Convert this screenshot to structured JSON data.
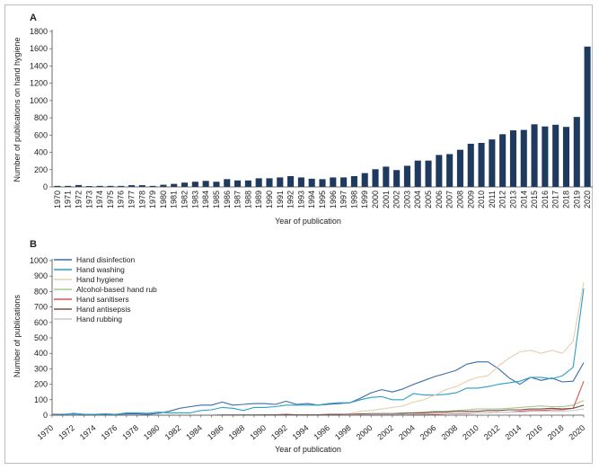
{
  "chart_data": [
    {
      "panel": "A",
      "type": "bar",
      "title": "",
      "xlabel": "Year of publication",
      "ylabel": "Number of publications on hand hygiene",
      "ylim": [
        0,
        1800
      ],
      "yticks": [
        0,
        200,
        400,
        600,
        800,
        1000,
        1200,
        1400,
        1600,
        1800
      ],
      "color": "#1f3a5f",
      "categories": [
        "1970",
        "1971",
        "1972",
        "1973",
        "1974",
        "1975",
        "1976",
        "1977",
        "1978",
        "1979",
        "1980",
        "1981",
        "1982",
        "1983",
        "1984",
        "1985",
        "1986",
        "1987",
        "1988",
        "1989",
        "1990",
        "1991",
        "1992",
        "1993",
        "1994",
        "1995",
        "1996",
        "1997",
        "1998",
        "1999",
        "2000",
        "2001",
        "2002",
        "2003",
        "2004",
        "2005",
        "2006",
        "2007",
        "2008",
        "2009",
        "2010",
        "2011",
        "2012",
        "2013",
        "2014",
        "2015",
        "2016",
        "2017",
        "2018",
        "2019",
        "2020"
      ],
      "values": [
        12,
        12,
        22,
        10,
        12,
        12,
        12,
        20,
        20,
        12,
        25,
        35,
        50,
        60,
        70,
        60,
        90,
        75,
        75,
        100,
        100,
        110,
        125,
        110,
        95,
        90,
        110,
        110,
        125,
        160,
        205,
        235,
        195,
        245,
        305,
        305,
        370,
        380,
        430,
        500,
        510,
        550,
        610,
        655,
        660,
        725,
        700,
        720,
        695,
        810,
        1625
      ]
    },
    {
      "panel": "B",
      "type": "line",
      "title": "",
      "xlabel": "Year of publication",
      "ylabel": "Number of publications",
      "xlim": [
        1970,
        2020
      ],
      "ylim": [
        0,
        1000
      ],
      "yticks": [
        0,
        100,
        200,
        300,
        400,
        500,
        600,
        700,
        800,
        900,
        1000
      ],
      "xticks": [
        "1970",
        "1972",
        "1974",
        "1976",
        "1978",
        "1980",
        "1982",
        "1984",
        "1986",
        "1988",
        "1990",
        "1992",
        "1994",
        "1996",
        "1998",
        "2000",
        "2002",
        "2004",
        "2006",
        "2008",
        "2010",
        "2012",
        "2014",
        "2016",
        "2018",
        "2020"
      ],
      "legend_position": "top-left",
      "x": [
        1970,
        1971,
        1972,
        1973,
        1974,
        1975,
        1976,
        1977,
        1978,
        1979,
        1980,
        1981,
        1982,
        1983,
        1984,
        1985,
        1986,
        1987,
        1988,
        1989,
        1990,
        1991,
        1992,
        1993,
        1994,
        1995,
        1996,
        1997,
        1998,
        1999,
        2000,
        2001,
        2002,
        2003,
        2004,
        2005,
        2006,
        2007,
        2008,
        2009,
        2010,
        2011,
        2012,
        2013,
        2014,
        2015,
        2016,
        2017,
        2018,
        2019,
        2020
      ],
      "series": [
        {
          "name": "Hand disinfection",
          "color": "#3a6ea5",
          "values": [
            5,
            5,
            8,
            5,
            5,
            8,
            5,
            8,
            8,
            5,
            12,
            25,
            45,
            55,
            65,
            65,
            85,
            65,
            70,
            75,
            75,
            70,
            90,
            70,
            75,
            65,
            70,
            75,
            80,
            110,
            145,
            165,
            150,
            170,
            200,
            225,
            250,
            270,
            290,
            330,
            345,
            345,
            300,
            240,
            200,
            245,
            225,
            240,
            215,
            220,
            340
          ]
        },
        {
          "name": "Hand washing",
          "color": "#2aa0c8",
          "values": [
            2,
            3,
            12,
            5,
            5,
            5,
            5,
            15,
            15,
            12,
            20,
            15,
            15,
            15,
            30,
            35,
            50,
            45,
            30,
            50,
            50,
            55,
            65,
            65,
            65,
            65,
            75,
            80,
            80,
            100,
            115,
            120,
            100,
            100,
            140,
            130,
            130,
            135,
            145,
            175,
            175,
            185,
            200,
            210,
            220,
            245,
            245,
            235,
            255,
            310,
            820
          ]
        },
        {
          "name": "Hand hygiene",
          "color": "#e8cfae",
          "values": [
            0,
            0,
            0,
            0,
            0,
            0,
            0,
            0,
            0,
            0,
            0,
            0,
            0,
            0,
            0,
            0,
            0,
            0,
            0,
            0,
            0,
            0,
            0,
            0,
            0,
            0,
            0,
            0,
            10,
            25,
            30,
            40,
            50,
            60,
            85,
            100,
            130,
            165,
            185,
            220,
            245,
            255,
            320,
            370,
            410,
            420,
            400,
            420,
            400,
            480,
            860
          ]
        },
        {
          "name": "Alcohol-based hand rub",
          "color": "#a6c98a",
          "values": [
            0,
            0,
            0,
            0,
            0,
            0,
            0,
            0,
            0,
            0,
            0,
            0,
            0,
            0,
            0,
            0,
            0,
            0,
            0,
            0,
            0,
            0,
            0,
            0,
            0,
            0,
            0,
            0,
            0,
            5,
            10,
            10,
            10,
            15,
            15,
            20,
            25,
            25,
            30,
            35,
            40,
            40,
            40,
            45,
            50,
            55,
            60,
            55,
            55,
            65,
            95
          ]
        },
        {
          "name": "Hand sanitisers",
          "color": "#d9534f",
          "values": [
            0,
            0,
            0,
            0,
            0,
            0,
            0,
            0,
            0,
            0,
            0,
            0,
            0,
            0,
            0,
            0,
            0,
            0,
            0,
            0,
            0,
            0,
            0,
            0,
            0,
            0,
            0,
            0,
            0,
            0,
            2,
            2,
            2,
            3,
            5,
            5,
            5,
            8,
            10,
            12,
            15,
            15,
            20,
            20,
            25,
            30,
            30,
            35,
            35,
            45,
            220
          ]
        },
        {
          "name": "Hand antisepsis",
          "color": "#7a4f4f",
          "values": [
            0,
            0,
            0,
            0,
            0,
            0,
            0,
            0,
            0,
            0,
            0,
            0,
            0,
            0,
            0,
            0,
            2,
            2,
            2,
            2,
            3,
            3,
            5,
            3,
            3,
            3,
            5,
            5,
            5,
            8,
            10,
            10,
            10,
            12,
            15,
            15,
            20,
            20,
            25,
            25,
            25,
            30,
            30,
            35,
            35,
            40,
            40,
            45,
            40,
            45,
            65
          ]
        },
        {
          "name": "Hand rubbing",
          "color": "#c9c9c9",
          "values": [
            0,
            0,
            0,
            0,
            0,
            0,
            0,
            0,
            0,
            0,
            0,
            0,
            0,
            0,
            0,
            0,
            0,
            0,
            0,
            0,
            0,
            0,
            0,
            0,
            0,
            0,
            0,
            0,
            2,
            2,
            5,
            5,
            5,
            5,
            8,
            8,
            10,
            10,
            12,
            15,
            15,
            15,
            20,
            20,
            20,
            25,
            25,
            25,
            25,
            30,
            40
          ]
        }
      ]
    }
  ]
}
